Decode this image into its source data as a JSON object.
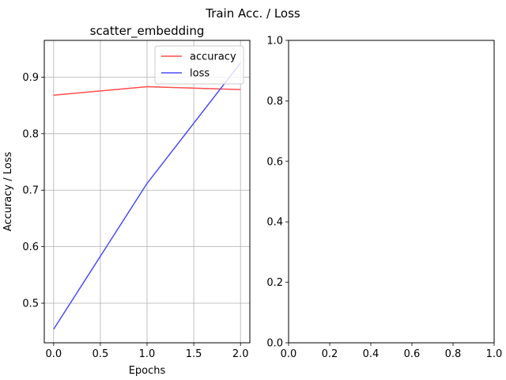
{
  "figure": {
    "suptitle": "Train Acc. / Loss"
  },
  "chart_data": [
    {
      "type": "line",
      "title": "scatter_embedding",
      "xlabel": "Epochs",
      "ylabel": "Accuracy / Loss",
      "x": [
        0,
        1,
        2
      ],
      "xlim": [
        -0.1,
        2.1
      ],
      "ylim": [
        0.43,
        0.965
      ],
      "xticks": [
        0.0,
        0.5,
        1.0,
        1.5,
        2.0
      ],
      "xtick_labels": [
        "0.0",
        "0.5",
        "1.0",
        "1.5",
        "2.0"
      ],
      "yticks": [
        0.5,
        0.6,
        0.7,
        0.8,
        0.9
      ],
      "ytick_labels": [
        "0.5",
        "0.6",
        "0.7",
        "0.8",
        "0.9"
      ],
      "grid": true,
      "legend_position": "top-right",
      "series": [
        {
          "name": "accuracy",
          "color": "#ff4d4d",
          "values": [
            0.868,
            0.883,
            0.878
          ]
        },
        {
          "name": "loss",
          "color": "#4d4dff",
          "values": [
            0.454,
            0.712,
            0.925
          ]
        }
      ]
    },
    {
      "type": "line",
      "title": "",
      "xlabel": "",
      "ylabel": "",
      "xlim": [
        0,
        1
      ],
      "ylim": [
        0,
        1
      ],
      "xticks": [
        0.0,
        0.2,
        0.4,
        0.6,
        0.8,
        1.0
      ],
      "xtick_labels": [
        "0.0",
        "0.2",
        "0.4",
        "0.6",
        "0.8",
        "1.0"
      ],
      "yticks": [
        0.0,
        0.2,
        0.4,
        0.6,
        0.8,
        1.0
      ],
      "ytick_labels": [
        "0.0",
        "0.2",
        "0.4",
        "0.6",
        "0.8",
        "1.0"
      ],
      "grid": false,
      "series": []
    }
  ]
}
